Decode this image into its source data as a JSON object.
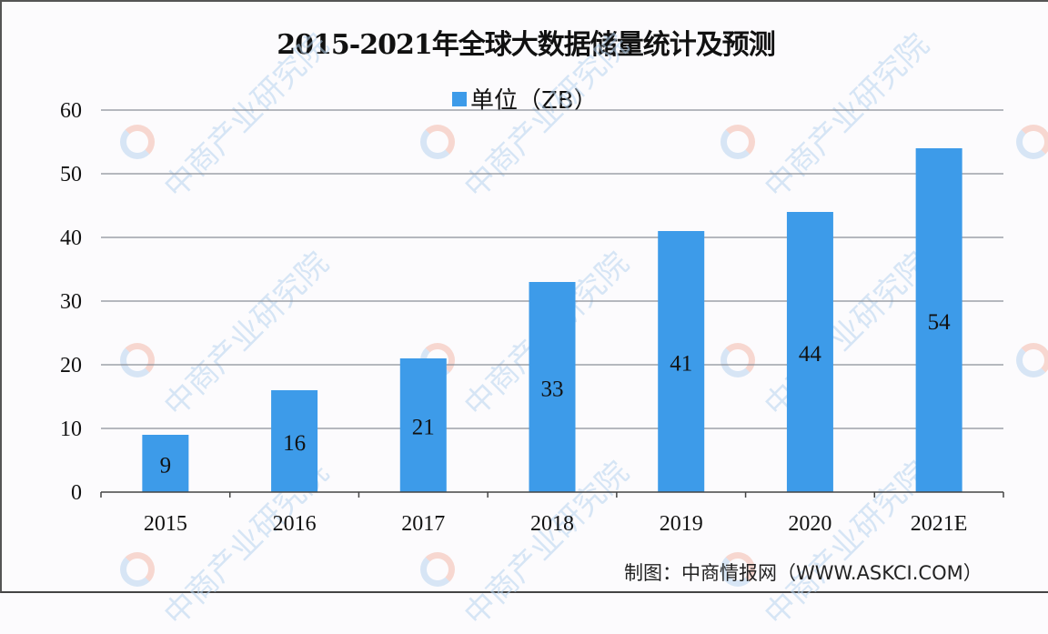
{
  "chart_data": {
    "type": "bar",
    "title": "2015-2021年全球大数据储量统计及预测",
    "categories": [
      "2015",
      "2016",
      "2017",
      "2018",
      "2019",
      "2020",
      "2021E"
    ],
    "series": [
      {
        "name": "单位（ZB）",
        "values": [
          9,
          16,
          21,
          33,
          41,
          44,
          54
        ],
        "color": "#3d9be9"
      }
    ],
    "xlabel": "",
    "ylabel": "",
    "ylim": [
      0,
      60
    ],
    "yticks": [
      0,
      10,
      20,
      30,
      40,
      50,
      60
    ],
    "grid": true,
    "legend_position": "top",
    "data_labels": true
  },
  "legend": {
    "label": "单位（ZB）"
  },
  "source": "制图：中商情报网（WWW.ASKCI.COM）",
  "watermark": "中商产业研究院"
}
